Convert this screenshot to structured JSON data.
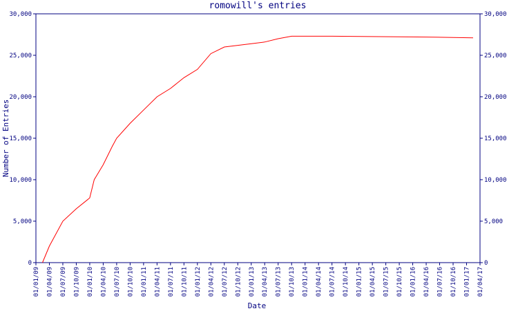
{
  "chart_data": {
    "type": "line",
    "title": "romowill's entries",
    "x_label": "Date",
    "y_label": "Number of Entries",
    "categories": [
      "01/01/09",
      "01/04/09",
      "01/07/09",
      "01/10/09",
      "01/01/10",
      "01/04/10",
      "01/07/10",
      "01/10/10",
      "01/01/11",
      "01/04/11",
      "01/07/11",
      "01/10/11",
      "01/01/12",
      "01/04/12",
      "01/07/12",
      "01/10/12",
      "01/01/13",
      "01/04/13",
      "01/07/13",
      "01/10/13",
      "01/01/14",
      "01/04/14",
      "01/07/14",
      "01/10/14",
      "01/01/15",
      "01/04/15",
      "01/07/15",
      "01/10/15",
      "01/01/16",
      "01/04/16",
      "01/07/16",
      "01/10/16",
      "01/01/17",
      "01/04/17"
    ],
    "xlim": [
      "01/01/09",
      "01/04/17"
    ],
    "series": [
      {
        "name": "romowill",
        "color": "#ff0000",
        "x": [
          "15/02/09",
          "01/04/09",
          "01/07/09",
          "01/10/09",
          "01/01/10",
          "01/02/10",
          "01/04/10",
          "01/06/10",
          "01/07/10",
          "01/10/10",
          "01/01/11",
          "01/04/11",
          "01/07/11",
          "01/10/11",
          "01/01/12",
          "01/04/12",
          "01/07/12",
          "01/10/12",
          "01/01/13",
          "01/04/13",
          "01/07/13",
          "01/10/13",
          "01/07/14",
          "01/04/16",
          "15/02/17"
        ],
        "values": [
          0,
          2000,
          5000,
          6500,
          7800,
          10000,
          11800,
          14000,
          15000,
          16800,
          18400,
          20000,
          21000,
          22300,
          23300,
          25200,
          26000,
          26200,
          26400,
          26600,
          27000,
          27300,
          27300,
          27200,
          27100
        ]
      }
    ],
    "ylim": [
      0,
      30000
    ],
    "yticks": [
      0,
      {
        "value": 5000,
        "label": "5,000"
      },
      {
        "value": 10000,
        "label": "10,000"
      },
      {
        "value": 15000,
        "label": "15,000"
      },
      {
        "value": 20000,
        "label": "20,000"
      },
      {
        "value": 25000,
        "label": "25,000"
      },
      {
        "value": 30000,
        "label": "30,000"
      }
    ],
    "axis_color": "#000080"
  }
}
